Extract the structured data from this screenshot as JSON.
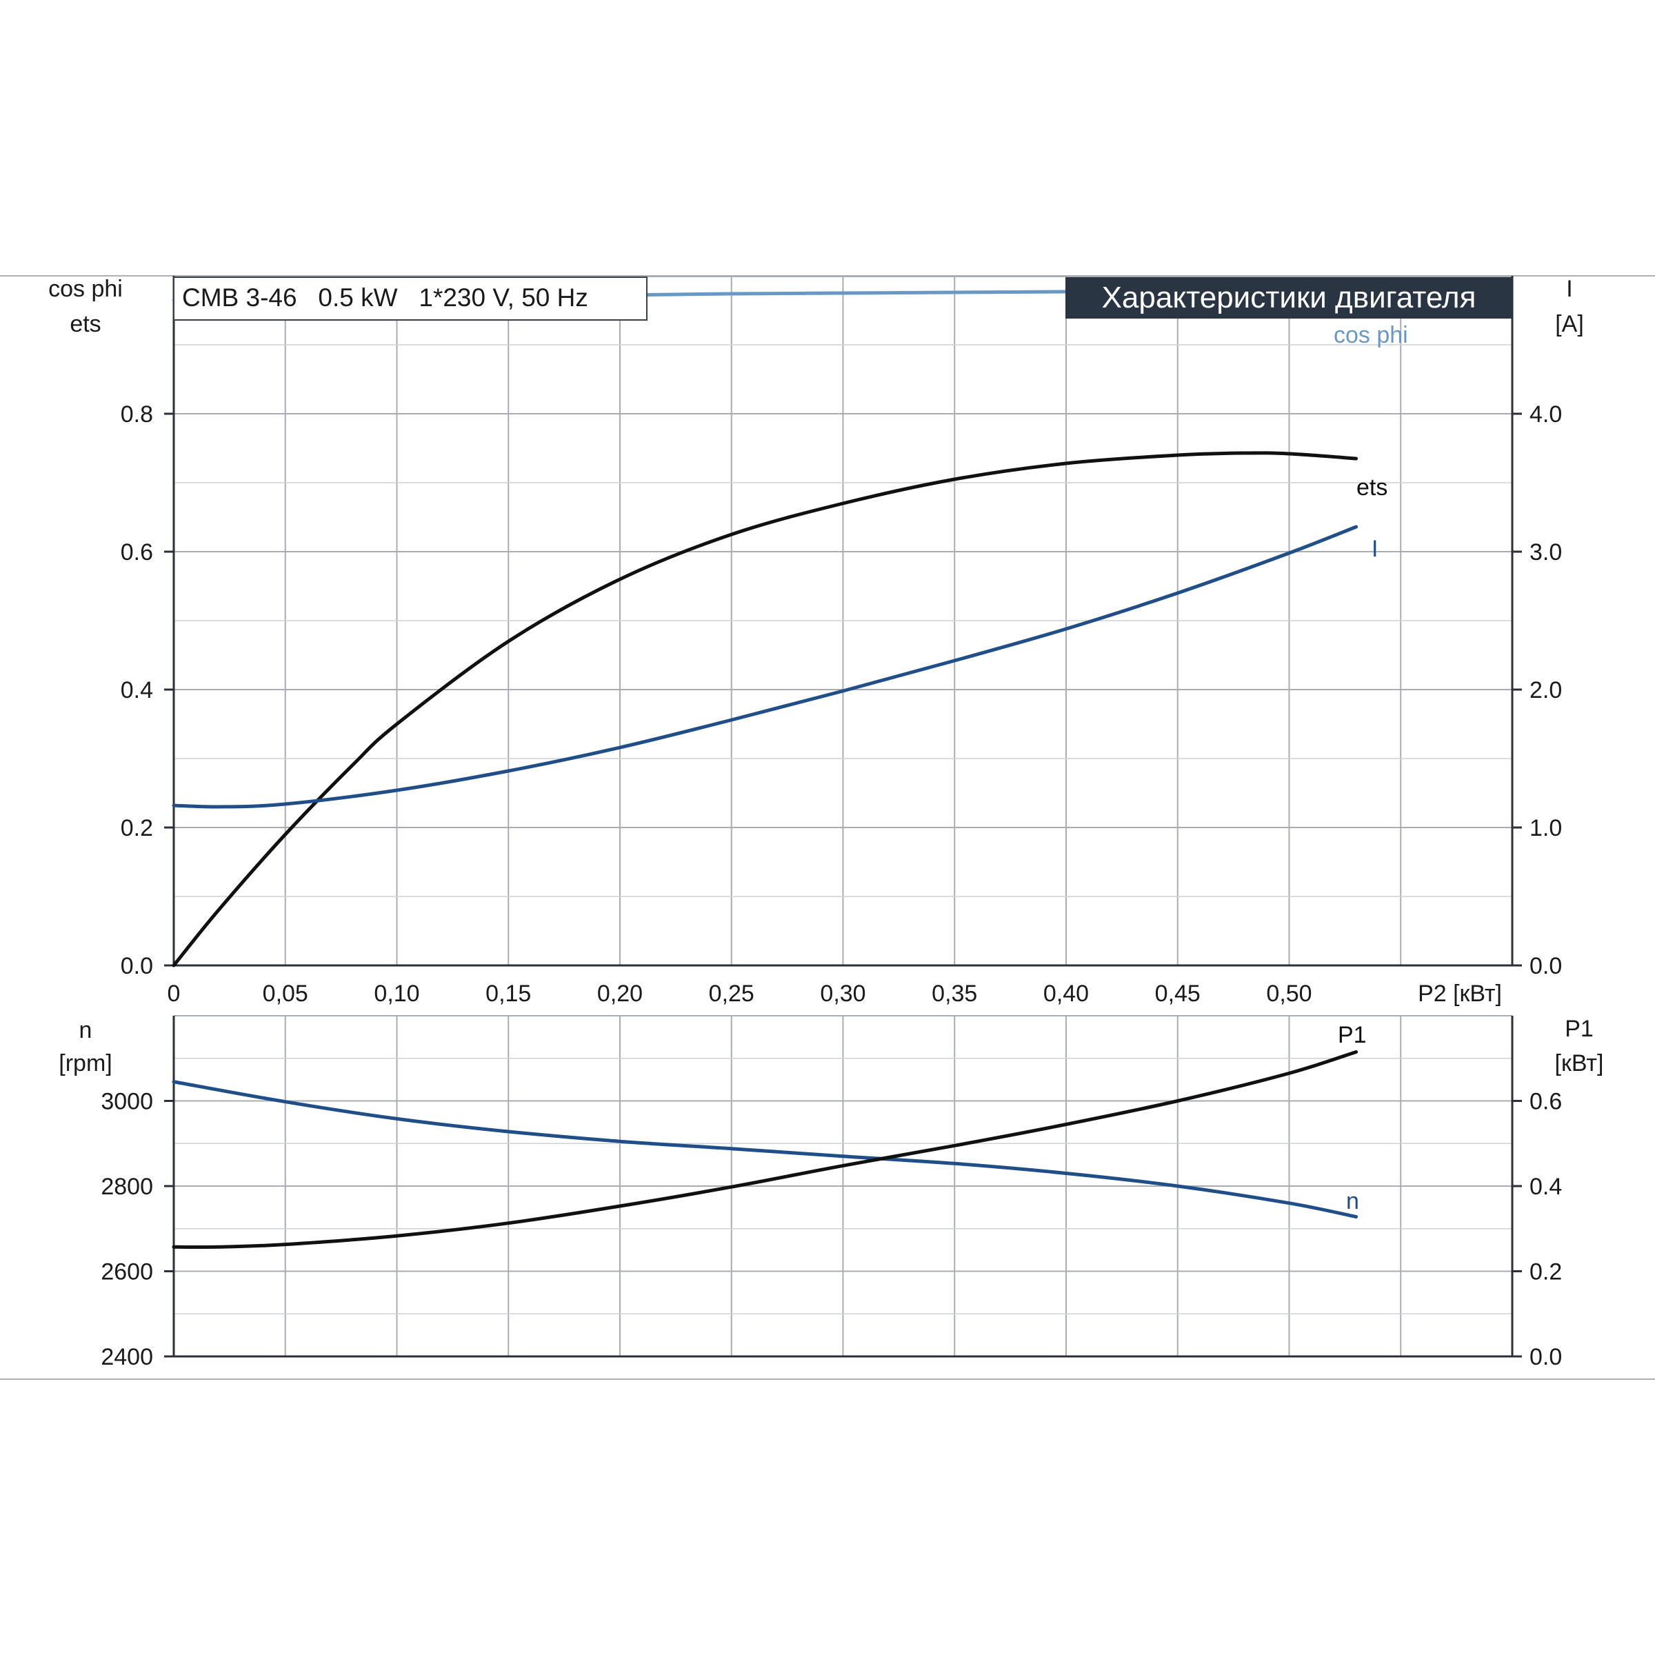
{
  "header": {
    "model_label": "CMB 3-46   0.5 kW   1*230 V, 50 Hz",
    "title": "Характеристики двигателя"
  },
  "axes": {
    "top_left_unit_1": "cos phi",
    "top_left_unit_2": "ets",
    "top_right_unit_1": "I",
    "top_right_unit_2": "[A]",
    "x_label": "P2 [кВт]",
    "bottom_left_unit_1": "n",
    "bottom_left_unit_2": "[rpm]",
    "bottom_right_unit_1": "P1",
    "bottom_right_unit_2": "[кВт]"
  },
  "colors": {
    "cos_phi": "#6a98c4",
    "current": "#1f4e89",
    "efficiency": "#111111",
    "speed": "#1f4e89",
    "input_power": "#111111",
    "title_bg": "#293542"
  },
  "chart_data": [
    {
      "type": "line",
      "x_ticks": [
        "0",
        "0,05",
        "0,10",
        "0,15",
        "0,20",
        "0,25",
        "0,30",
        "0,35",
        "0,40",
        "0,45",
        "0,50"
      ],
      "xlabel": "P2 [кВт]",
      "xlim": [
        0,
        0.6
      ],
      "y_left_ticks": [
        "0.0",
        "0.2",
        "0.4",
        "0.6",
        "0.8"
      ],
      "ylim_left": [
        0,
        1.0
      ],
      "y_right_ticks": [
        "0.0",
        "1.0",
        "2.0",
        "3.0",
        "4.0"
      ],
      "ylim_right": [
        0,
        5.0
      ],
      "grid": true,
      "series": [
        {
          "name": "cos phi",
          "axis": "left",
          "x": [
            0,
            0.05,
            0.1,
            0.15,
            0.2,
            0.25,
            0.3,
            0.35,
            0.4,
            0.45,
            0.5,
            0.53
          ],
          "y": [
            0.965,
            0.966,
            0.968,
            0.97,
            0.972,
            0.974,
            0.975,
            0.976,
            0.977,
            0.978,
            0.979,
            0.98
          ]
        },
        {
          "name": "ets",
          "axis": "left",
          "x": [
            0,
            0.02,
            0.05,
            0.08,
            0.1,
            0.15,
            0.2,
            0.25,
            0.3,
            0.35,
            0.4,
            0.45,
            0.48,
            0.5,
            0.53
          ],
          "y": [
            0,
            0.08,
            0.19,
            0.29,
            0.35,
            0.47,
            0.56,
            0.625,
            0.67,
            0.705,
            0.728,
            0.74,
            0.743,
            0.742,
            0.735
          ]
        },
        {
          "name": "I",
          "axis": "right",
          "x": [
            0,
            0.02,
            0.05,
            0.1,
            0.15,
            0.2,
            0.25,
            0.3,
            0.35,
            0.4,
            0.45,
            0.5,
            0.53
          ],
          "y": [
            1.16,
            1.15,
            1.17,
            1.27,
            1.41,
            1.58,
            1.78,
            1.99,
            2.21,
            2.44,
            2.7,
            2.99,
            3.18
          ]
        }
      ]
    },
    {
      "type": "line",
      "xlim": [
        0,
        0.6
      ],
      "y_left_ticks": [
        "2400",
        "2600",
        "2800",
        "3000"
      ],
      "ylim_left": [
        2400,
        3200
      ],
      "y_right_ticks": [
        "0.0",
        "0.2",
        "0.4",
        "0.6"
      ],
      "ylim_right": [
        0,
        0.8
      ],
      "grid": true,
      "series": [
        {
          "name": "n",
          "axis": "left",
          "x": [
            0,
            0.05,
            0.1,
            0.15,
            0.2,
            0.25,
            0.3,
            0.35,
            0.4,
            0.45,
            0.5,
            0.53
          ],
          "y": [
            3045,
            2998,
            2958,
            2928,
            2905,
            2888,
            2870,
            2853,
            2830,
            2800,
            2760,
            2728
          ]
        },
        {
          "name": "P1",
          "axis": "right",
          "x": [
            0,
            0.02,
            0.05,
            0.1,
            0.15,
            0.2,
            0.25,
            0.3,
            0.35,
            0.4,
            0.45,
            0.5,
            0.53
          ],
          "y": [
            0.257,
            0.257,
            0.263,
            0.283,
            0.313,
            0.353,
            0.398,
            0.448,
            0.495,
            0.545,
            0.6,
            0.665,
            0.715
          ]
        }
      ]
    }
  ]
}
